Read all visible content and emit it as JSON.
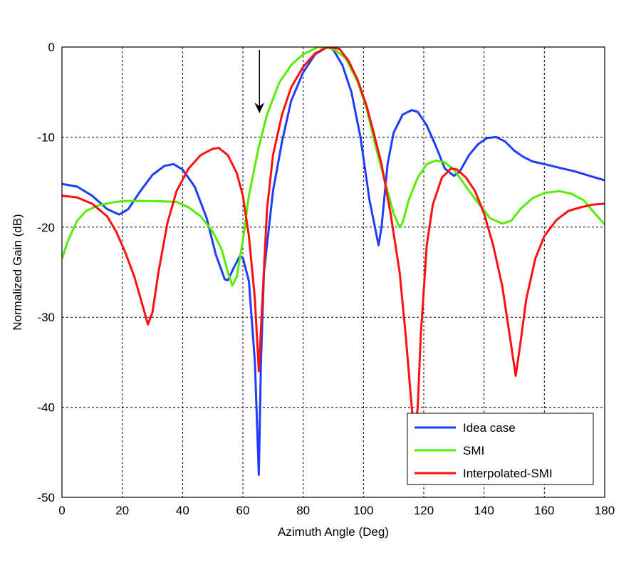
{
  "chart_data": {
    "type": "line",
    "title": "",
    "xlabel": "Azimuth Angle (Deg)",
    "ylabel": "Normalized Gain (dB)",
    "xlim": [
      0,
      180
    ],
    "ylim": [
      -50,
      0
    ],
    "xticks": [
      "0",
      "20",
      "40",
      "60",
      "80",
      "100",
      "120",
      "140",
      "160",
      "180"
    ],
    "yticks": [
      "0",
      "-10",
      "-20",
      "-30",
      "-40",
      "-50"
    ],
    "grid": true,
    "legend_position": "bottom-right",
    "annotation": {
      "type": "arrow",
      "x": 65.5,
      "direction": "down"
    },
    "series": [
      {
        "name": "Idea case",
        "color": "#1f3dff",
        "x": [
          0,
          5,
          10,
          15,
          19,
          22,
          26,
          30,
          34,
          37,
          40,
          44,
          48,
          51,
          54,
          55,
          57,
          59,
          60,
          62,
          64,
          65.3,
          66,
          67,
          70,
          73,
          76,
          80,
          84,
          88,
          90,
          93,
          96,
          99,
          102,
          105,
          106,
          108,
          110,
          113,
          116,
          118,
          121,
          124,
          127,
          130,
          132,
          135,
          138,
          141,
          144,
          147,
          150,
          153,
          156,
          160,
          165,
          170,
          175,
          180
        ],
        "y": [
          -15.2,
          -15.5,
          -16.5,
          -18,
          -18.6,
          -18,
          -16,
          -14.2,
          -13.2,
          -13,
          -13.6,
          -15.5,
          -19,
          -23,
          -25.8,
          -25.9,
          -24.5,
          -23.2,
          -23.4,
          -26,
          -35,
          -47.5,
          -35,
          -25,
          -16,
          -10.5,
          -6,
          -2.8,
          -0.8,
          0,
          -0.3,
          -2,
          -5,
          -10,
          -17,
          -22,
          -20,
          -13,
          -9.5,
          -7.5,
          -7,
          -7.2,
          -8.7,
          -11,
          -13.5,
          -14.3,
          -13.8,
          -12,
          -10.8,
          -10.1,
          -10,
          -10.5,
          -11.5,
          -12.2,
          -12.7,
          -13,
          -13.4,
          -13.8,
          -14.3,
          -14.8
        ]
      },
      {
        "name": "SMI",
        "color": "#55ee00",
        "x": [
          0,
          2,
          5,
          8,
          12,
          16,
          20,
          30,
          38,
          42,
          46,
          50,
          53,
          55,
          56.5,
          58,
          60,
          62,
          65,
          68,
          72,
          76,
          80,
          85,
          90,
          94,
          98,
          101,
          104,
          107,
          110,
          112,
          113,
          115,
          118,
          121,
          124,
          127,
          130,
          134,
          138,
          142,
          146,
          149,
          152,
          156,
          160,
          165,
          169,
          173,
          176,
          180
        ],
        "y": [
          -23.5,
          -21.5,
          -19.3,
          -18.2,
          -17.6,
          -17.3,
          -17.1,
          -17.1,
          -17.2,
          -17.8,
          -18.8,
          -20.5,
          -22.5,
          -25,
          -26.5,
          -25.5,
          -21.5,
          -16.5,
          -11.5,
          -7.5,
          -4,
          -2,
          -0.8,
          0,
          -0.2,
          -1.2,
          -3.8,
          -6.8,
          -11,
          -14.8,
          -18.5,
          -20,
          -19.5,
          -17,
          -14.5,
          -13,
          -12.6,
          -12.8,
          -13.6,
          -15.5,
          -17.3,
          -19,
          -19.6,
          -19.3,
          -18,
          -16.8,
          -16.2,
          -16,
          -16.3,
          -17,
          -18.2,
          -19.7
        ]
      },
      {
        "name": "Interpolated-SMI",
        "color": "#ff1010",
        "x": [
          0,
          5,
          10,
          15,
          18,
          21,
          24,
          27,
          28.5,
          30,
          32,
          35,
          38,
          42,
          46,
          50,
          52,
          55,
          58,
          60,
          62,
          64,
          65.3,
          66.5,
          68,
          70,
          73,
          76,
          80,
          84,
          88,
          92,
          95,
          98,
          101,
          103,
          106,
          109,
          112,
          114,
          116,
          117,
          118,
          119,
          121,
          123,
          126,
          129,
          131,
          134,
          137,
          140,
          143,
          146,
          148.5,
          150.5,
          152,
          154,
          157,
          160,
          164,
          168,
          172,
          176,
          180
        ],
        "y": [
          -16.5,
          -16.7,
          -17.4,
          -18.8,
          -20.5,
          -22.8,
          -25.5,
          -29,
          -30.8,
          -29.5,
          -25,
          -19.5,
          -16,
          -13.5,
          -12,
          -11.3,
          -11.2,
          -12,
          -14,
          -16.5,
          -21,
          -28,
          -36,
          -28,
          -18,
          -12,
          -7.5,
          -4.5,
          -2.2,
          -0.7,
          0,
          -0.2,
          -1.5,
          -3.6,
          -6.5,
          -9,
          -13,
          -18.5,
          -25,
          -32,
          -40,
          -43,
          -40,
          -32,
          -22,
          -17.5,
          -14.5,
          -13.5,
          -13.6,
          -14.5,
          -16,
          -18.5,
          -22,
          -26.5,
          -32,
          -36.5,
          -33,
          -28,
          -23.5,
          -21,
          -19.2,
          -18.2,
          -17.8,
          -17.5,
          -17.4
        ]
      }
    ]
  }
}
